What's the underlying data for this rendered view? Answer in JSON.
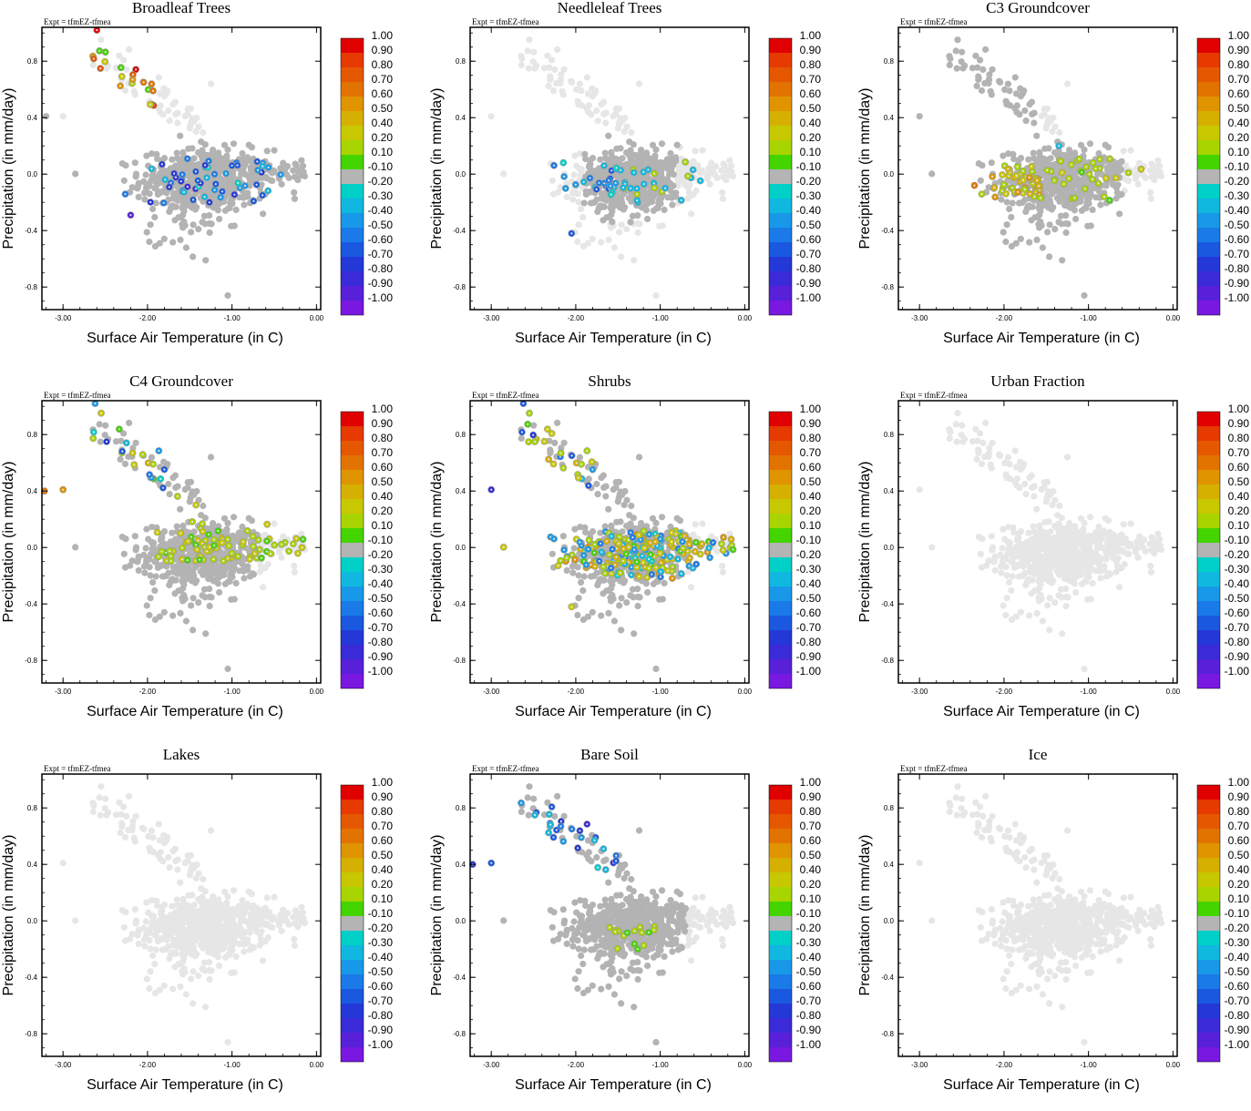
{
  "figure": {
    "expt_label": "Expt = tfmEZ-tfmea",
    "xlabel": "Surface Air Temperature (in C)",
    "ylabel": "Precipitation (in mm/day)",
    "x_ticks": [
      "-3.00",
      "-2.00",
      "-1.00",
      "0.00"
    ],
    "y_ticks": [
      "0.8",
      "0.4",
      "0.0",
      "-0.4",
      "-0.8"
    ],
    "colorbar": {
      "labels": [
        "1.00",
        "0.90",
        "0.80",
        "0.70",
        "0.60",
        "0.50",
        "0.40",
        "0.20",
        "0.10",
        "-0.10",
        "-0.20",
        "-0.30",
        "-0.40",
        "-0.50",
        "-0.60",
        "-0.70",
        "-0.80",
        "-0.90",
        "-1.00"
      ],
      "colors": [
        "#e00000",
        "#e63a00",
        "#e55800",
        "#e37300",
        "#e09400",
        "#d6b000",
        "#c8c800",
        "#a8d400",
        "#44d400",
        "#b4b4b4",
        "#00d0c8",
        "#10b8e0",
        "#1898e8",
        "#1a7ae8",
        "#1a58e0",
        "#2438d8",
        "#3a2ad8",
        "#5820d8",
        "#7818e0"
      ]
    }
  },
  "chart_data": [
    {
      "title": "Broadleaf Trees",
      "type": "scatter",
      "seed": 11,
      "mode": "broadleaf",
      "xlim": [
        -3.25,
        0.05
      ],
      "ylim": [
        -0.96,
        1.04
      ]
    },
    {
      "title": "Needleleaf Trees",
      "type": "scatter",
      "seed": 23,
      "mode": "needleleaf",
      "xlim": [
        -3.25,
        0.05
      ],
      "ylim": [
        -0.96,
        1.04
      ]
    },
    {
      "title": "C3 Groundcover",
      "type": "scatter",
      "seed": 37,
      "mode": "c3",
      "xlim": [
        -3.25,
        0.05
      ],
      "ylim": [
        -0.96,
        1.04
      ]
    },
    {
      "title": "C4 Groundcover",
      "type": "scatter",
      "seed": 41,
      "mode": "c4",
      "xlim": [
        -3.25,
        0.05
      ],
      "ylim": [
        -0.96,
        1.04
      ]
    },
    {
      "title": "Shrubs",
      "type": "scatter",
      "seed": 53,
      "mode": "shrubs",
      "xlim": [
        -3.25,
        0.05
      ],
      "ylim": [
        -0.96,
        1.04
      ]
    },
    {
      "title": "Urban Fraction",
      "type": "scatter",
      "seed": 67,
      "mode": "none",
      "xlim": [
        -3.25,
        0.05
      ],
      "ylim": [
        -0.96,
        1.04
      ]
    },
    {
      "title": "Lakes",
      "type": "scatter",
      "seed": 71,
      "mode": "none",
      "xlim": [
        -3.25,
        0.05
      ],
      "ylim": [
        -0.96,
        1.04
      ]
    },
    {
      "title": "Bare Soil",
      "type": "scatter",
      "seed": 83,
      "mode": "baresoil",
      "xlim": [
        -3.25,
        0.05
      ],
      "ylim": [
        -0.96,
        1.04
      ]
    },
    {
      "title": "Ice",
      "type": "scatter",
      "seed": 97,
      "mode": "none",
      "xlim": [
        -3.25,
        0.05
      ],
      "ylim": [
        -0.96,
        1.04
      ]
    }
  ]
}
